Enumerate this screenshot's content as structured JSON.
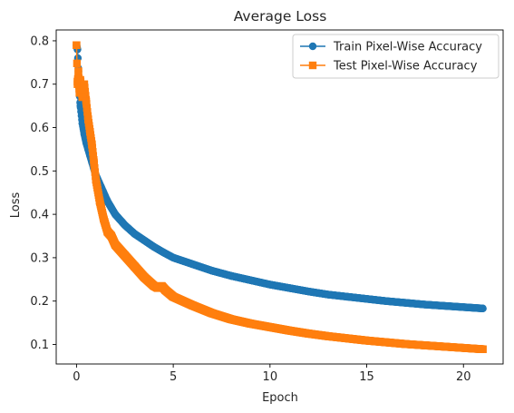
{
  "chart_data": {
    "type": "line",
    "title": "Average Loss",
    "xlabel": "Epoch",
    "ylabel": "Loss",
    "xlim": [
      -1.05,
      22.05
    ],
    "ylim": [
      0.055,
      0.825
    ],
    "xticks": [
      0,
      5,
      10,
      15,
      20
    ],
    "yticks": [
      0.1,
      0.2,
      0.3,
      0.4,
      0.5,
      0.6,
      0.7,
      0.8
    ],
    "grid": false,
    "legend_position": "top-right",
    "series": [
      {
        "name": "Train Pixel-Wise Accuracy",
        "color": "#1f77b4",
        "marker": "circle",
        "x": [
          0,
          0.05,
          0.1,
          0.15,
          0.2,
          0.3,
          0.4,
          0.5,
          0.6,
          0.7,
          0.8,
          0.9,
          1.0,
          1.2,
          1.4,
          1.6,
          1.8,
          2.0,
          2.5,
          3.0,
          3.5,
          4.0,
          4.5,
          5.0,
          6.0,
          7.0,
          8.0,
          9.0,
          10.0,
          11.0,
          12.0,
          13.0,
          14.0,
          15.0,
          16.0,
          17.0,
          18.0,
          19.0,
          20.0,
          21.0
        ],
        "y": [
          0.79,
          0.78,
          0.73,
          0.68,
          0.65,
          0.61,
          0.585,
          0.565,
          0.55,
          0.535,
          0.52,
          0.505,
          0.49,
          0.47,
          0.45,
          0.43,
          0.415,
          0.4,
          0.375,
          0.355,
          0.34,
          0.325,
          0.312,
          0.3,
          0.285,
          0.27,
          0.258,
          0.248,
          0.238,
          0.23,
          0.222,
          0.215,
          0.21,
          0.205,
          0.2,
          0.196,
          0.192,
          0.189,
          0.186,
          0.183
        ]
      },
      {
        "name": "Test Pixel-Wise Accuracy",
        "color": "#ff7f0e",
        "marker": "square",
        "x": [
          0,
          0.05,
          0.1,
          0.15,
          0.2,
          0.3,
          0.4,
          0.5,
          0.6,
          0.7,
          0.8,
          0.9,
          1.0,
          1.2,
          1.4,
          1.6,
          1.8,
          2.0,
          2.5,
          3.0,
          3.5,
          4.0,
          4.2,
          4.4,
          4.6,
          5.0,
          6.0,
          7.0,
          8.0,
          9.0,
          10.0,
          11.0,
          12.0,
          13.0,
          14.0,
          15.0,
          16.0,
          17.0,
          18.0,
          19.0,
          20.0,
          21.0
        ],
        "y": [
          0.79,
          0.7,
          0.73,
          0.68,
          0.71,
          0.67,
          0.7,
          0.66,
          0.62,
          0.59,
          0.56,
          0.52,
          0.48,
          0.43,
          0.39,
          0.36,
          0.35,
          0.33,
          0.305,
          0.28,
          0.255,
          0.235,
          0.23,
          0.235,
          0.225,
          0.21,
          0.19,
          0.172,
          0.158,
          0.148,
          0.14,
          0.132,
          0.125,
          0.119,
          0.114,
          0.109,
          0.105,
          0.101,
          0.098,
          0.095,
          0.092,
          0.089
        ]
      }
    ]
  }
}
